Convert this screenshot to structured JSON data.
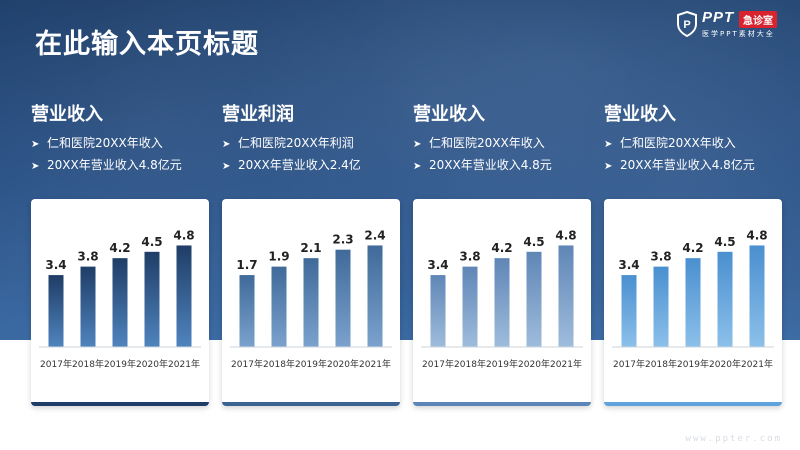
{
  "page": {
    "title": "在此输入本页标题"
  },
  "logo": {
    "brand": "PPT",
    "badge": "急诊室",
    "subtitle": "医学PPT素材大全"
  },
  "footer": {
    "url": "www.ppter.com"
  },
  "chart_data": [
    {
      "type": "bar",
      "title": "营业收入",
      "bullets": [
        "仁和医院20XX年收入",
        "20XX年营业收入4.8亿元"
      ],
      "categories": [
        "2017年",
        "2018年",
        "2019年",
        "2020年",
        "2021年"
      ],
      "values": [
        3.4,
        3.8,
        4.2,
        4.5,
        4.8
      ],
      "ylim": [
        0,
        5.2
      ],
      "colors": {
        "top": "#1f3d66",
        "bottom": "#4f84be",
        "accent": "#1f3d66"
      }
    },
    {
      "type": "bar",
      "title": "营业利润",
      "bullets": [
        "仁和医院20XX年利润",
        "20XX年营业收入2.4亿"
      ],
      "categories": [
        "2017年",
        "2018年",
        "2019年",
        "2020年",
        "2021年"
      ],
      "values": [
        1.7,
        1.9,
        2.1,
        2.3,
        2.4
      ],
      "ylim": [
        0,
        2.6
      ],
      "colors": {
        "top": "#3f6a99",
        "bottom": "#7aa2cd",
        "accent": "#3c6493"
      }
    },
    {
      "type": "bar",
      "title": "营业收入",
      "bullets": [
        "仁和医院20XX年收入",
        "20XX年营业收入4.8元"
      ],
      "categories": [
        "2017年",
        "2018年",
        "2019年",
        "2020年",
        "2021年"
      ],
      "values": [
        3.4,
        3.8,
        4.2,
        4.5,
        4.8
      ],
      "ylim": [
        0,
        5.2
      ],
      "colors": {
        "top": "#5f86b6",
        "bottom": "#9fbcdc",
        "accent": "#5b86b7"
      }
    },
    {
      "type": "bar",
      "title": "营业收入",
      "bullets": [
        "仁和医院20XX年收入",
        "20XX年营业收入4.8亿元"
      ],
      "categories": [
        "2017年",
        "2018年",
        "2019年",
        "2020年",
        "2021年"
      ],
      "values": [
        3.4,
        3.8,
        4.2,
        4.5,
        4.8
      ],
      "ylim": [
        0,
        5.2
      ],
      "colors": {
        "top": "#4a8fd0",
        "bottom": "#8cc0ea",
        "accent": "#5fa3dd"
      }
    }
  ]
}
